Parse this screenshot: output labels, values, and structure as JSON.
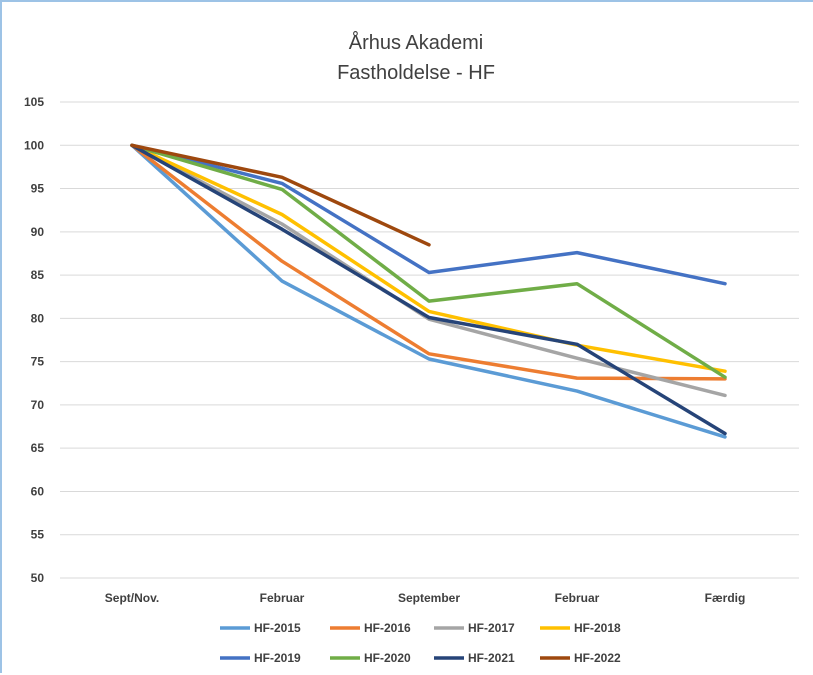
{
  "chart_data": {
    "type": "line",
    "title": "Århus Akademi",
    "subtitle": "Fastholdelse - HF",
    "xlabel": "",
    "ylabel": "",
    "categories": [
      "Sept/Nov.",
      "Februar",
      "September",
      "Februar",
      "Færdig"
    ],
    "ylim": [
      50,
      105
    ],
    "yticks": [
      50,
      55,
      60,
      65,
      70,
      75,
      80,
      85,
      90,
      95,
      100,
      105
    ],
    "grid": true,
    "legend_position": "bottom",
    "series": [
      {
        "name": "HF-2015",
        "color": "#5b9bd5",
        "values": [
          100,
          84.3,
          75.3,
          71.6,
          66.3
        ]
      },
      {
        "name": "HF-2016",
        "color": "#ed7d31",
        "values": [
          100,
          86.6,
          75.9,
          73.1,
          73.0
        ]
      },
      {
        "name": "HF-2017",
        "color": "#a5a5a5",
        "values": [
          100,
          90.9,
          79.9,
          75.4,
          71.1
        ]
      },
      {
        "name": "HF-2018",
        "color": "#ffc000",
        "values": [
          100,
          92.0,
          80.8,
          76.9,
          73.9
        ]
      },
      {
        "name": "HF-2019",
        "color": "#4472c4",
        "values": [
          100,
          95.6,
          85.3,
          87.6,
          84.0
        ]
      },
      {
        "name": "HF-2020",
        "color": "#70ad47",
        "values": [
          100,
          94.9,
          82.0,
          84.0,
          73.2
        ]
      },
      {
        "name": "HF-2021",
        "color": "#264478",
        "values": [
          100,
          90.3,
          80.1,
          77.0,
          66.7
        ]
      },
      {
        "name": "HF-2022",
        "color": "#9e480e",
        "values": [
          100,
          96.3,
          88.5,
          null,
          null
        ]
      }
    ]
  }
}
